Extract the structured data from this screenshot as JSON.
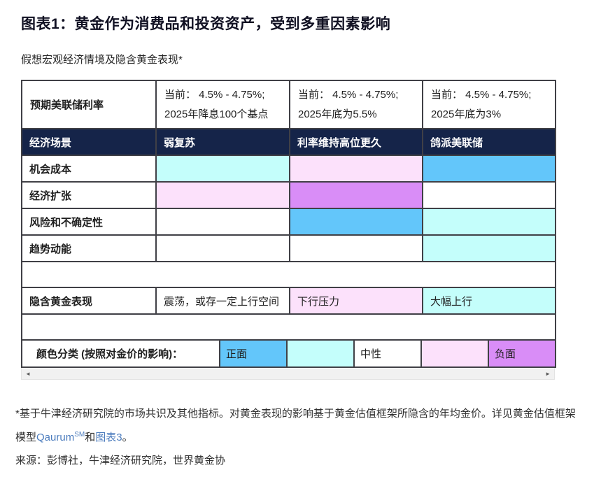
{
  "title": "图表1：黄金作为消费品和投资资产，受到多重因素影响",
  "subtitle": "假想宏观经济情境及隐含黄金表现*",
  "colors": {
    "blue": "#63C6FA",
    "cyan": "#C4FEFB",
    "pink": "#FCE1FB",
    "purple": "#D98DF7",
    "white": "#FFFFFF",
    "header_navy": "#152449"
  },
  "table": {
    "rate_row": {
      "label": "预期美联储利率",
      "cells": [
        {
          "line1": "当前： 4.5% - 4.75%;",
          "line2": "2025年降息100个基点"
        },
        {
          "line1": "当前： 4.5% - 4.75%;",
          "line2": "2025年底为5.5%"
        },
        {
          "line1": "当前： 4.5% - 4.75%;",
          "line2": "2025年底为3%"
        }
      ]
    },
    "scenario_row": {
      "label": "经济场景",
      "cells": [
        "弱复苏",
        "利率维持高位更久",
        "鸽派美联储"
      ]
    },
    "factor_rows": [
      {
        "label": "机会成本",
        "colors": [
          "cyan",
          "pink",
          "blue"
        ]
      },
      {
        "label": "经济扩张",
        "colors": [
          "pink",
          "purple",
          "white"
        ]
      },
      {
        "label": "风险和不确定性",
        "colors": [
          "white",
          "blue",
          "cyan"
        ]
      },
      {
        "label": "趋势动能",
        "colors": [
          "white",
          "white",
          "cyan"
        ]
      }
    ],
    "implied_row": {
      "label": "隐含黄金表现",
      "cells": [
        {
          "text": "震荡，或存一定上行空间",
          "color": "white"
        },
        {
          "text": "下行压力",
          "color": "pink"
        },
        {
          "text": "大幅上行",
          "color": "cyan"
        }
      ]
    },
    "legend_row": {
      "label": "颜色分类 (按照对金价的影响)：",
      "cells": [
        {
          "text": "正面",
          "color": "blue"
        },
        {
          "text": "",
          "color": "cyan"
        },
        {
          "text": "中性",
          "color": "white"
        },
        {
          "text": "",
          "color": "pink"
        },
        {
          "text": "负面",
          "color": "purple"
        }
      ]
    }
  },
  "scrollbar": {
    "left_arrow": "◄",
    "right_arrow": "►"
  },
  "footnote": {
    "text_before": "*基于牛津经济研究院的市场共识及其他指标。对黄金表现的影响基于黄金估值框架所隐含的年均金价。详见黄金估值框架模型",
    "link_qaurum": "Qaurum",
    "superscript": "SM",
    "text_mid": "和",
    "link_chart3": "图表3",
    "text_after": "。"
  },
  "source": "来源：彭博社，牛津经济研究院，世界黄金协"
}
